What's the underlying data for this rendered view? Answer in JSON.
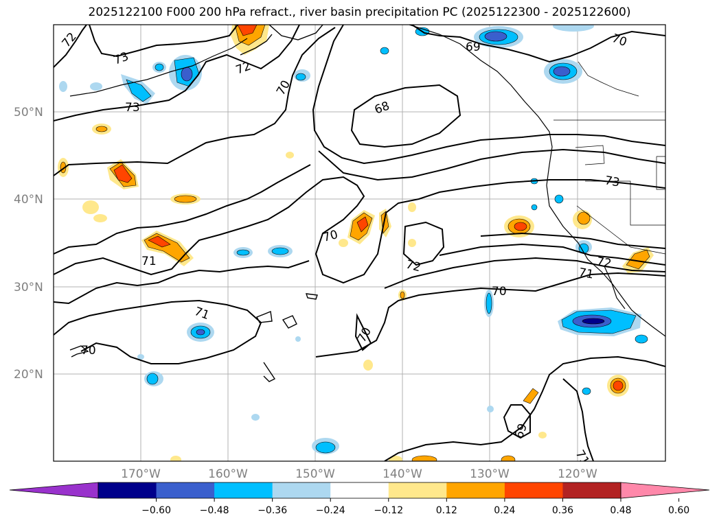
{
  "title": "2025122100 F000 200 hPa refract., river basin precipitation PC (2025122300 - 2025122600)",
  "lat_labels": [
    "50°N",
    "40°N",
    "30°N",
    "20°N"
  ],
  "lon_labels": [
    "170°W",
    "160°W",
    "150°W",
    "140°W",
    "130°W",
    "120°W"
  ],
  "contour_labels": [
    {
      "text": "72"
    },
    {
      "text": "73"
    },
    {
      "text": "73"
    },
    {
      "text": "72"
    },
    {
      "text": "70"
    },
    {
      "text": "69"
    },
    {
      "text": "70"
    },
    {
      "text": "68"
    },
    {
      "text": "73"
    },
    {
      "text": "70"
    },
    {
      "text": "71"
    },
    {
      "text": "72"
    },
    {
      "text": "72"
    },
    {
      "text": "71"
    },
    {
      "text": "70"
    },
    {
      "text": "71"
    },
    {
      "text": "70"
    },
    {
      "text": "70"
    },
    {
      "text": "69"
    },
    {
      "text": "71"
    }
  ],
  "colorbar": {
    "ticks": [
      "−0.60",
      "−0.48",
      "−0.36",
      "−0.24",
      "−0.12",
      "0.12",
      "0.24",
      "0.36",
      "0.48",
      "0.60"
    ],
    "colors": [
      "#9932cc",
      "#00008b",
      "#3a5fcd",
      "#00bfff",
      "#add8f0",
      "#ffffff",
      "#ffe88c",
      "#ffa500",
      "#ff4500",
      "#b22222",
      "#ff88aa"
    ]
  }
}
